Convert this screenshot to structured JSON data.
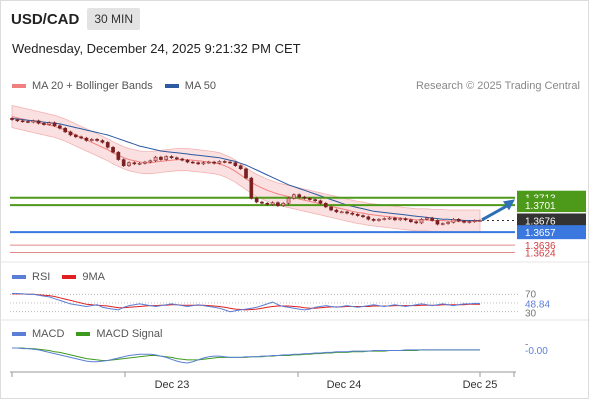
{
  "header": {
    "symbol": "USD/CAD",
    "timeframe": "30 MIN"
  },
  "datetime": "Wednesday, December 24, 2025 9:21:32 PM CET",
  "copyright": "Research © 2025 Trading Central",
  "legends": {
    "main": [
      {
        "label": "MA 20 + Bollinger Bands",
        "color": "#f08080"
      },
      {
        "label": "MA 50",
        "color": "#2d5aa0"
      }
    ],
    "rsi": [
      {
        "label": "RSI",
        "color": "#5b7fd6"
      },
      {
        "label": "9MA",
        "color": "#e02020"
      }
    ],
    "macd": [
      {
        "label": "MACD",
        "color": "#5b7fd6"
      },
      {
        "label": "MACD Signal",
        "color": "#3e9a1e"
      }
    ]
  },
  "colors": {
    "resistance": "#4d9a1a",
    "support": "#3a78e0",
    "minor_level": "#e08a8a",
    "current": "#333333",
    "bull_candle": "#e8a0a0",
    "bear_candle": "#7a2020",
    "arrow": "#2e6fb5"
  },
  "chart_data": [
    {
      "type": "candlestick",
      "title": "USD/CAD",
      "ylim": [
        1.3615,
        1.388
      ],
      "x_ticks": [
        "Dec 23",
        "Dec 24",
        "Dec 25"
      ],
      "levels": [
        {
          "label": "1.3713",
          "value": 1.3713,
          "kind": "resistance"
        },
        {
          "label": "1.3701",
          "value": 1.3701,
          "kind": "resistance"
        },
        {
          "label": "1.3676",
          "value": 1.3676,
          "kind": "current"
        },
        {
          "label": "1.3657",
          "value": 1.3657,
          "kind": "support"
        },
        {
          "label": "1.3636",
          "value": 1.3636,
          "kind": "minor"
        },
        {
          "label": "1.3624",
          "value": 1.3624,
          "kind": "minor"
        }
      ],
      "close": [
        1.384,
        1.3838,
        1.3837,
        1.3836,
        1.3838,
        1.3834,
        1.3832,
        1.3835,
        1.383,
        1.3826,
        1.382,
        1.3815,
        1.3812,
        1.381,
        1.3806,
        1.3808,
        1.3806,
        1.3803,
        1.3795,
        1.3787,
        1.3775,
        1.3765,
        1.377,
        1.3768,
        1.3769,
        1.3771,
        1.3773,
        1.3779,
        1.3775,
        1.378,
        1.3778,
        1.3776,
        1.3774,
        1.3771,
        1.377,
        1.3768,
        1.377,
        1.3771,
        1.3769,
        1.3772,
        1.3771,
        1.377,
        1.3765,
        1.376,
        1.3745,
        1.3712,
        1.3706,
        1.3704,
        1.3702,
        1.3705,
        1.37,
        1.3704,
        1.3712,
        1.3718,
        1.3714,
        1.3712,
        1.371,
        1.3708,
        1.3704,
        1.3698,
        1.3693,
        1.369,
        1.369,
        1.3688,
        1.3686,
        1.3684,
        1.3682,
        1.3678,
        1.3676,
        1.3678,
        1.3679,
        1.368,
        1.3677,
        1.3679,
        1.3677,
        1.3674,
        1.3672,
        1.3678,
        1.368,
        1.3676,
        1.367,
        1.3671,
        1.3673,
        1.3678,
        1.3675,
        1.3673,
        1.3674,
        1.3676,
        1.3676
      ],
      "ma20": [
        1.3845,
        1.3843,
        1.3841,
        1.3839,
        1.3837,
        1.3835,
        1.3833,
        1.3831,
        1.3829,
        1.3826,
        1.3823,
        1.3819,
        1.3815,
        1.3811,
        1.3807,
        1.3803,
        1.3799,
        1.3795,
        1.3791,
        1.3786,
        1.3782,
        1.3778,
        1.3775,
        1.3773,
        1.3771,
        1.377,
        1.377,
        1.3771,
        1.3772,
        1.3773,
        1.3774,
        1.3775,
        1.3775,
        1.3775,
        1.3774,
        1.3773,
        1.3772,
        1.3771,
        1.377,
        1.3768,
        1.3765,
        1.3761,
        1.3756,
        1.375,
        1.3744,
        1.3738,
        1.3733,
        1.3729,
        1.3725,
        1.3722,
        1.3719,
        1.3717,
        1.3715,
        1.3713,
        1.3711,
        1.3709,
        1.3707,
        1.3705,
        1.3703,
        1.3701,
        1.3699,
        1.3697,
        1.3695,
        1.3693,
        1.3691,
        1.3689,
        1.3688,
        1.3686,
        1.3685,
        1.3684,
        1.3683,
        1.3682,
        1.3681,
        1.368,
        1.3679,
        1.3678,
        1.3677,
        1.3677,
        1.3677,
        1.3676,
        1.3676,
        1.3676,
        1.3675,
        1.3675,
        1.3675,
        1.3675,
        1.3675,
        1.3675,
        1.3675
      ],
      "ma50": [
        1.3842,
        1.3841,
        1.384,
        1.3839,
        1.3838,
        1.3837,
        1.3836,
        1.3835,
        1.3834,
        1.3833,
        1.3831,
        1.3829,
        1.3827,
        1.3825,
        1.3823,
        1.3821,
        1.3819,
        1.3817,
        1.3815,
        1.3812,
        1.3809,
        1.3806,
        1.3803,
        1.38,
        1.3797,
        1.3795,
        1.3793,
        1.3791,
        1.3789,
        1.3788,
        1.3787,
        1.3786,
        1.3785,
        1.3784,
        1.3783,
        1.3782,
        1.3781,
        1.378,
        1.3779,
        1.3778,
        1.3776,
        1.3774,
        1.3772,
        1.3769,
        1.3766,
        1.3762,
        1.3758,
        1.3754,
        1.375,
        1.3746,
        1.3742,
        1.3738,
        1.3734,
        1.3731,
        1.3728,
        1.3725,
        1.3722,
        1.3719,
        1.3716,
        1.3713,
        1.371,
        1.3707,
        1.3704,
        1.3701,
        1.3699,
        1.3697,
        1.3695,
        1.3693,
        1.3691,
        1.369,
        1.3689,
        1.3688,
        1.3687,
        1.3686,
        1.3685,
        1.3684,
        1.3683,
        1.3682,
        1.3681,
        1.368,
        1.3679,
        1.3678,
        1.3678,
        1.3677,
        1.3677,
        1.3676,
        1.3676,
        1.3676,
        1.3676
      ],
      "bb_width": 0.0018,
      "forecast_arrow": {
        "from": 1.3677,
        "to": 1.3712
      }
    },
    {
      "type": "line",
      "title": "RSI",
      "ylim": [
        20,
        80
      ],
      "y_ticks": [
        "70",
        "30"
      ],
      "last_value_label": "48.84",
      "series": [
        {
          "name": "RSI",
          "values": [
            72,
            72,
            71,
            70,
            70,
            68,
            66,
            64,
            60,
            56,
            52,
            48,
            46,
            44,
            42,
            44,
            46,
            40,
            38,
            36,
            34,
            40,
            44,
            46,
            48,
            46,
            44,
            42,
            44,
            46,
            48,
            46,
            44,
            42,
            44,
            46,
            44,
            42,
            40,
            38,
            34,
            30,
            32,
            34,
            36,
            38,
            40,
            44,
            48,
            52,
            46,
            42,
            40,
            38,
            36,
            34,
            36,
            40,
            42,
            44,
            42,
            40,
            42,
            44,
            42,
            40,
            42,
            44,
            46,
            44,
            42,
            44,
            46,
            44,
            42,
            44,
            46,
            48,
            46,
            44,
            46,
            48,
            46,
            44,
            46,
            48,
            48,
            49,
            48.84
          ]
        },
        {
          "name": "9MA",
          "values": [
            71,
            71,
            71,
            70,
            70,
            69,
            68,
            67,
            65,
            62,
            59,
            56,
            53,
            50,
            47,
            46,
            45,
            44,
            43,
            41,
            39,
            39,
            40,
            41,
            42,
            43,
            44,
            44,
            45,
            45,
            46,
            46,
            45,
            45,
            45,
            45,
            45,
            44,
            43,
            42,
            40,
            38,
            36,
            35,
            34,
            35,
            36,
            38,
            40,
            42,
            43,
            43,
            43,
            42,
            41,
            39,
            38,
            38,
            39,
            40,
            41,
            41,
            41,
            42,
            42,
            42,
            42,
            42,
            43,
            43,
            43,
            43,
            44,
            44,
            44,
            44,
            44,
            45,
            45,
            45,
            45,
            46,
            46,
            46,
            46,
            46,
            47,
            47,
            47
          ]
        }
      ]
    },
    {
      "type": "line",
      "title": "MACD",
      "ylim": [
        -0.003,
        0.001
      ],
      "y_ticks": [
        "-",
        "-0.00"
      ],
      "last_value_label": "-0.00",
      "series": [
        {
          "name": "MACD",
          "values": [
            0.0002,
            0.0002,
            0.0001,
            0.0001,
            0.0,
            -0.0001,
            -0.0003,
            -0.0005,
            -0.0007,
            -0.0009,
            -0.0011,
            -0.0013,
            -0.0015,
            -0.0017,
            -0.0019,
            -0.002,
            -0.002,
            -0.0019,
            -0.0018,
            -0.0016,
            -0.0014,
            -0.0012,
            -0.001,
            -0.0009,
            -0.0008,
            -0.0008,
            -0.0008,
            -0.0009,
            -0.0011,
            -0.0013,
            -0.0016,
            -0.0019,
            -0.0021,
            -0.0022,
            -0.002,
            -0.0017,
            -0.0014,
            -0.0012,
            -0.0011,
            -0.0011,
            -0.0012,
            -0.0013,
            -0.0013,
            -0.0013,
            -0.0012,
            -0.0012,
            -0.0012,
            -0.0011,
            -0.0011,
            -0.001,
            -0.001,
            -0.0009,
            -0.0009,
            -0.0008,
            -0.0008,
            -0.0007,
            -0.0007,
            -0.0006,
            -0.0006,
            -0.0005,
            -0.0005,
            -0.0004,
            -0.0004,
            -0.0004,
            -0.0003,
            -0.0003,
            -0.0003,
            -0.0003,
            -0.0002,
            -0.0002,
            -0.0002,
            -0.0002,
            -0.0002,
            -0.0002,
            -0.0001,
            -0.0001,
            -0.0001,
            -0.0001,
            -0.0001,
            -0.0001,
            -0.0001,
            -0.0001,
            -0.0001,
            -0.0001,
            -0.0001,
            -0.0001,
            -0.0001,
            -0.0001,
            -0.0001
          ]
        },
        {
          "name": "MACD Signal",
          "values": [
            0.0002,
            0.0002,
            0.0002,
            0.0001,
            0.0001,
            0.0,
            -0.0001,
            -0.0002,
            -0.0004,
            -0.0005,
            -0.0007,
            -0.0009,
            -0.0011,
            -0.0013,
            -0.0015,
            -0.0016,
            -0.0017,
            -0.0018,
            -0.0018,
            -0.0017,
            -0.0016,
            -0.0015,
            -0.0014,
            -0.0013,
            -0.0012,
            -0.0011,
            -0.001,
            -0.001,
            -0.0011,
            -0.0012,
            -0.0013,
            -0.0015,
            -0.0016,
            -0.0017,
            -0.0017,
            -0.0017,
            -0.0016,
            -0.0015,
            -0.0014,
            -0.0013,
            -0.0013,
            -0.0013,
            -0.0013,
            -0.0013,
            -0.0013,
            -0.0012,
            -0.0012,
            -0.0012,
            -0.0011,
            -0.0011,
            -0.001,
            -0.001,
            -0.001,
            -0.0009,
            -0.0009,
            -0.0008,
            -0.0008,
            -0.0007,
            -0.0007,
            -0.0006,
            -0.0006,
            -0.0005,
            -0.0005,
            -0.0005,
            -0.0004,
            -0.0004,
            -0.0004,
            -0.0003,
            -0.0003,
            -0.0003,
            -0.0003,
            -0.0002,
            -0.0002,
            -0.0002,
            -0.0002,
            -0.0002,
            -0.0002,
            -0.0001,
            -0.0001,
            -0.0001,
            -0.0001,
            -0.0001,
            -0.0001,
            -0.0001,
            -0.0001,
            -0.0001,
            -0.0001,
            -0.0001,
            -0.0001
          ]
        }
      ]
    }
  ]
}
